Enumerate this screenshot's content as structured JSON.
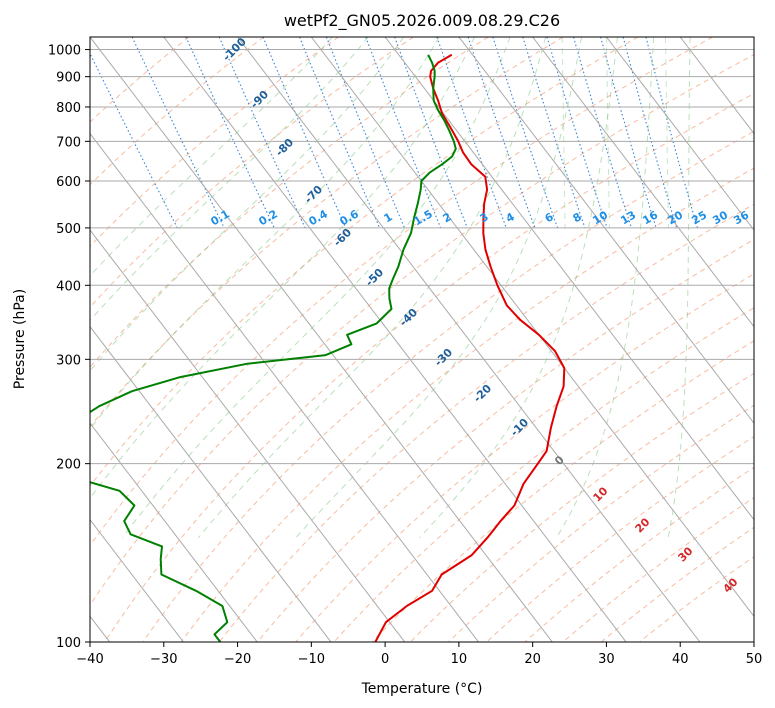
{
  "chart_data": {
    "type": "line",
    "title": "wetPf2_GN05.2026.009.08.29.C26",
    "xlabel": "Temperature (°C)",
    "ylabel": "Pressure (hPa)",
    "xlim": [
      -40,
      50
    ],
    "ylim": [
      1050,
      100
    ],
    "y_scale": "log",
    "x_ticks": [
      -40,
      -30,
      -20,
      -10,
      0,
      10,
      20,
      30,
      40,
      50
    ],
    "y_ticks": [
      100,
      200,
      300,
      400,
      500,
      600,
      700,
      800,
      900,
      1000
    ],
    "grid": true,
    "skew": true,
    "dry_adiabat_labels": [
      "-100",
      "-90",
      "-80",
      "-70",
      "-60",
      "-50",
      "-40",
      "-30",
      "-20",
      "-10",
      "0",
      "10",
      "20",
      "30",
      "40"
    ],
    "mixing_ratio_labels": [
      "0.1",
      "0.2",
      "0.4",
      "0.6",
      "1",
      "1.5",
      "2",
      "3",
      "4",
      "6",
      "8",
      "10",
      "13",
      "16",
      "20",
      "25",
      "30",
      "36"
    ],
    "series": [
      {
        "color": "#e00000",
        "points": [
          [
            980,
            7.2
          ],
          [
            950,
            4.5
          ],
          [
            920,
            2.7
          ],
          [
            900,
            2.0
          ],
          [
            860,
            1.2
          ],
          [
            820,
            0.6
          ],
          [
            780,
            -0.2
          ],
          [
            740,
            -0.5
          ],
          [
            700,
            -0.9
          ],
          [
            670,
            -1.4
          ],
          [
            640,
            -1.5
          ],
          [
            610,
            -0.9
          ],
          [
            580,
            -2.0
          ],
          [
            550,
            -3.8
          ],
          [
            520,
            -5.4
          ],
          [
            490,
            -7.0
          ],
          [
            460,
            -8.4
          ],
          [
            430,
            -9.5
          ],
          [
            400,
            -10.5
          ],
          [
            370,
            -11.3
          ],
          [
            350,
            -11.0
          ],
          [
            330,
            -10.0
          ],
          [
            310,
            -9.5
          ],
          [
            290,
            -10.0
          ],
          [
            270,
            -12.0
          ],
          [
            250,
            -15.0
          ],
          [
            230,
            -18.0
          ],
          [
            210,
            -21.0
          ],
          [
            200,
            -23.5
          ],
          [
            185,
            -27.5
          ],
          [
            170,
            -31.0
          ],
          [
            160,
            -34.5
          ],
          [
            150,
            -38.0
          ],
          [
            140,
            -42.0
          ],
          [
            130,
            -48.0
          ],
          [
            122,
            -51.0
          ],
          [
            115,
            -56.0
          ],
          [
            108,
            -60.5
          ],
          [
            100,
            -64.0
          ]
        ]
      },
      {
        "color": "#008000",
        "points": [
          [
            980,
            4.0
          ],
          [
            950,
            3.7
          ],
          [
            920,
            3.2
          ],
          [
            900,
            2.6
          ],
          [
            860,
            1.2
          ],
          [
            820,
            0.0
          ],
          [
            790,
            -0.4
          ],
          [
            760,
            -0.6
          ],
          [
            730,
            -1.0
          ],
          [
            700,
            -1.5
          ],
          [
            680,
            -2.0
          ],
          [
            660,
            -3.3
          ],
          [
            640,
            -5.5
          ],
          [
            620,
            -8.0
          ],
          [
            600,
            -10.0
          ],
          [
            580,
            -11.0
          ],
          [
            550,
            -12.8
          ],
          [
            520,
            -14.8
          ],
          [
            490,
            -16.8
          ],
          [
            460,
            -19.5
          ],
          [
            430,
            -22.0
          ],
          [
            410,
            -24.0
          ],
          [
            395,
            -25.5
          ],
          [
            380,
            -26.5
          ],
          [
            365,
            -27.3
          ],
          [
            345,
            -30.8
          ],
          [
            330,
            -36.0
          ],
          [
            318,
            -36.4
          ],
          [
            305,
            -41.0
          ],
          [
            295,
            -52.5
          ],
          [
            280,
            -63.0
          ],
          [
            265,
            -71.0
          ],
          [
            250,
            -77.0
          ],
          [
            238,
            -81.0
          ],
          [
            225,
            -83.0
          ],
          [
            210,
            -85.0
          ],
          [
            200,
            -89.0
          ],
          [
            190,
            -88.0
          ],
          [
            180,
            -83.0
          ],
          [
            170,
            -82.5
          ],
          [
            160,
            -85.5
          ],
          [
            152,
            -86.0
          ],
          [
            145,
            -83.0
          ],
          [
            138,
            -84.5
          ],
          [
            130,
            -86.0
          ],
          [
            122,
            -83.0
          ],
          [
            115,
            -81.0
          ],
          [
            108,
            -82.0
          ],
          [
            103,
            -85.0
          ],
          [
            100,
            -85.0
          ]
        ]
      }
    ]
  }
}
